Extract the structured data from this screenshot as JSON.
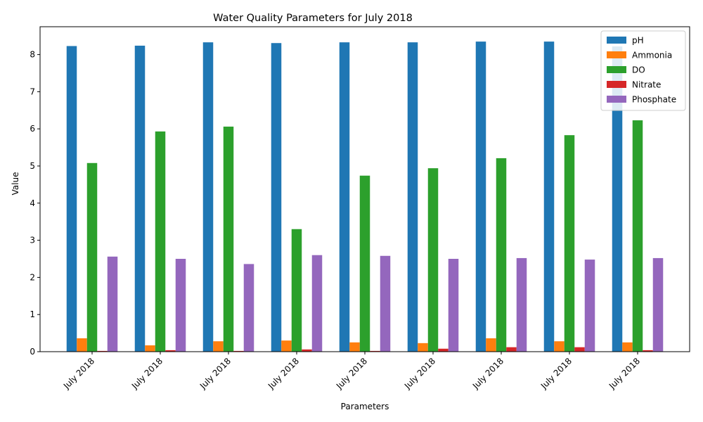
{
  "chart_data": {
    "type": "bar",
    "title": "Water Quality Parameters for July 2018",
    "xlabel": "Parameters",
    "ylabel": "Value",
    "ylim": [
      0,
      8.75
    ],
    "yticks": [
      0,
      1,
      2,
      3,
      4,
      5,
      6,
      7,
      8
    ],
    "categories": [
      "July 2018",
      "July 2018",
      "July 2018",
      "July 2018",
      "July 2018",
      "July 2018",
      "July 2018",
      "July 2018",
      "July 2018"
    ],
    "series": [
      {
        "name": "pH",
        "color": "#1f77b4",
        "values": [
          8.23,
          8.24,
          8.33,
          8.31,
          8.33,
          8.33,
          8.35,
          8.35,
          8.22
        ]
      },
      {
        "name": "Ammonia",
        "color": "#ff7f0e",
        "values": [
          0.36,
          0.17,
          0.28,
          0.3,
          0.25,
          0.23,
          0.36,
          0.28,
          0.25
        ]
      },
      {
        "name": "DO",
        "color": "#2ca02c",
        "values": [
          5.08,
          5.93,
          6.06,
          3.3,
          4.74,
          4.94,
          5.21,
          5.83,
          6.23
        ]
      },
      {
        "name": "Nitrate",
        "color": "#d62728",
        "values": [
          0.02,
          0.04,
          0.02,
          0.06,
          0.02,
          0.08,
          0.12,
          0.12,
          0.04
        ]
      },
      {
        "name": "Phosphate",
        "color": "#9467bd",
        "values": [
          2.56,
          2.5,
          2.36,
          2.6,
          2.58,
          2.5,
          2.52,
          2.48,
          2.52
        ]
      }
    ],
    "legend_position": "top-right",
    "grid": false
  }
}
